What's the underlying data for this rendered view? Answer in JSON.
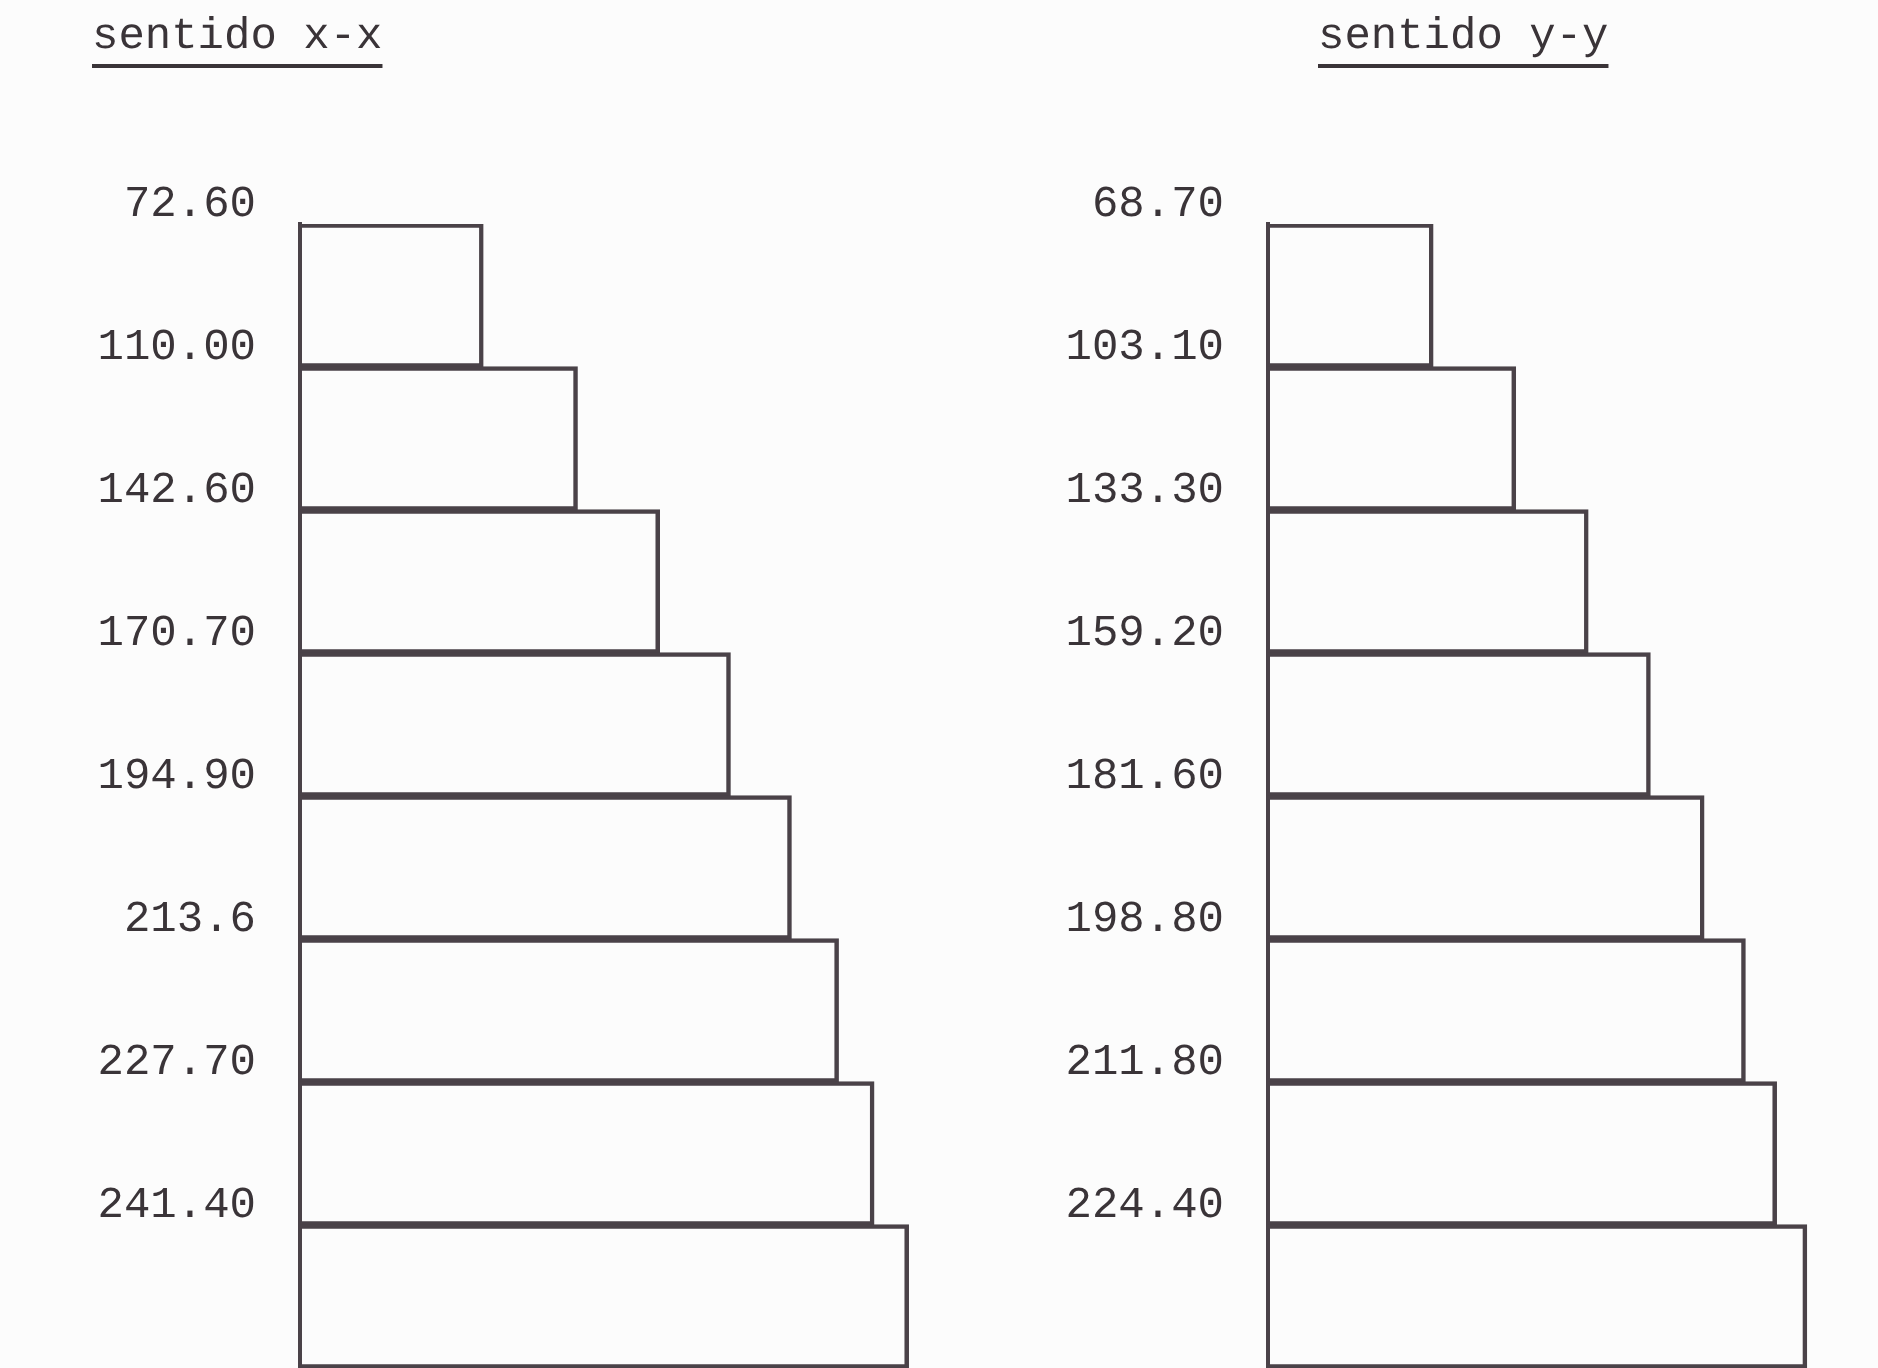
{
  "chart_data": [
    {
      "type": "bar",
      "title": "sentido x-x",
      "orientation": "horizontal",
      "categories": [
        null,
        null,
        null,
        null,
        null,
        null,
        null,
        null
      ],
      "values": [
        72.6,
        110.0,
        142.6,
        170.7,
        194.9,
        213.6,
        227.7,
        241.4
      ],
      "value_labels": [
        "72.60",
        "110.00",
        "142.60",
        "170.70",
        "194.90",
        "213.6",
        "227.70",
        "241.40"
      ],
      "color": "#4a4248",
      "tick_labels": false
    },
    {
      "type": "bar",
      "title": "sentido y-y",
      "orientation": "horizontal",
      "categories": [
        null,
        null,
        null,
        null,
        null,
        null,
        null,
        null
      ],
      "values": [
        68.7,
        103.1,
        133.3,
        159.2,
        181.6,
        198.8,
        211.8,
        224.4
      ],
      "value_labels": [
        "68.70",
        "103.10",
        "133.30",
        "159.20",
        "181.60",
        "198.80",
        "211.80",
        "224.40"
      ],
      "color": "#4a4248",
      "tick_labels": false
    }
  ]
}
